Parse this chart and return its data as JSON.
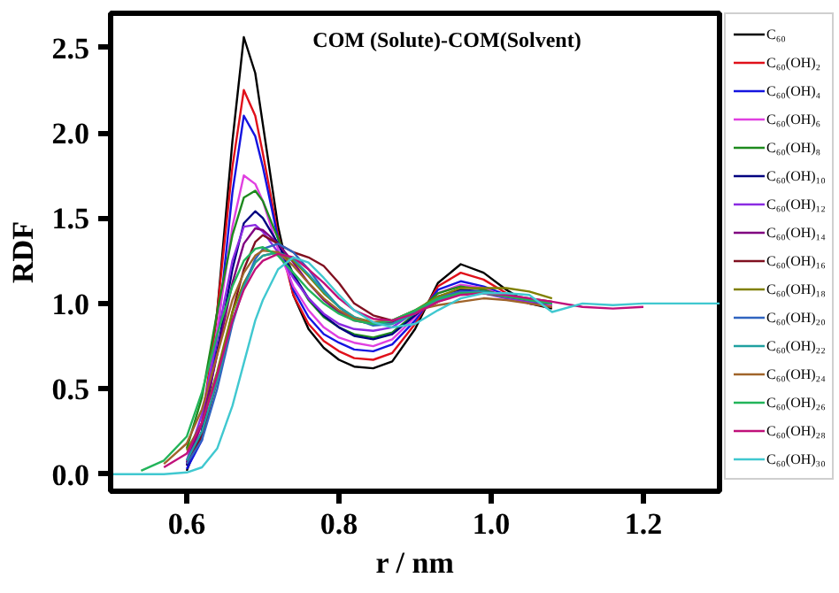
{
  "chart_data": {
    "type": "line",
    "title": "COM (Solute)-COM(Solvent)",
    "xlabel": "r / nm",
    "ylabel": "RDF",
    "xlim": [
      0.5,
      1.3
    ],
    "ylim": [
      -0.1,
      2.7
    ],
    "xticks": [
      0.6,
      0.8,
      {
        "value": 1.0,
        "label": "1.0"
      },
      1.2
    ],
    "yticks": [
      {
        "value": 0,
        "label": "0.0"
      },
      0.5,
      {
        "value": 1.0,
        "label": "1.0"
      },
      1.5,
      {
        "value": 2.0,
        "label": "2.0"
      },
      2.5
    ],
    "legend": "right",
    "x": [
      0.5,
      0.54,
      0.57,
      0.6,
      0.62,
      0.64,
      0.66,
      0.675,
      0.69,
      0.7,
      0.72,
      0.74,
      0.76,
      0.78,
      0.8,
      0.82,
      0.845,
      0.87,
      0.9,
      0.93,
      0.96,
      0.99,
      1.02,
      1.05,
      1.08,
      1.12,
      1.16,
      1.2,
      1.25,
      1.3
    ],
    "series": [
      {
        "name": "C₆₀",
        "color": "#000000",
        "values": [
          null,
          null,
          null,
          0.02,
          0.25,
          0.95,
          1.95,
          2.56,
          2.35,
          2.05,
          1.45,
          1.05,
          0.85,
          0.74,
          0.67,
          0.63,
          0.62,
          0.66,
          0.85,
          1.12,
          1.23,
          1.18,
          1.08,
          1.0,
          0.97,
          null,
          null,
          null,
          null,
          null
        ]
      },
      {
        "name": "C₆₀(OH)₂",
        "color": "#e0101a",
        "values": [
          null,
          null,
          null,
          0.05,
          0.3,
          0.95,
          1.8,
          2.25,
          2.1,
          1.88,
          1.4,
          1.05,
          0.88,
          0.78,
          0.72,
          0.68,
          0.67,
          0.71,
          0.88,
          1.1,
          1.18,
          1.14,
          1.06,
          1.0,
          0.98,
          null,
          null,
          null,
          null,
          null
        ]
      },
      {
        "name": "C₆₀(OH)₄",
        "color": "#1414e0",
        "values": [
          null,
          null,
          null,
          0.03,
          0.2,
          0.8,
          1.65,
          2.1,
          1.98,
          1.8,
          1.38,
          1.08,
          0.92,
          0.82,
          0.77,
          0.73,
          0.72,
          0.76,
          0.9,
          1.08,
          1.13,
          1.1,
          1.05,
          1.0,
          0.99,
          null,
          null,
          null,
          null,
          null
        ]
      },
      {
        "name": "C₆₀(OH)₆",
        "color": "#e040e0",
        "values": [
          null,
          null,
          null,
          0.06,
          0.3,
          0.85,
          1.45,
          1.75,
          1.7,
          1.6,
          1.32,
          1.1,
          0.96,
          0.86,
          0.8,
          0.77,
          0.75,
          0.79,
          0.92,
          1.06,
          1.11,
          1.09,
          1.04,
          1.0,
          0.99,
          null,
          null,
          null,
          null,
          null
        ]
      },
      {
        "name": "C₆₀(OH)₈",
        "color": "#1e8a1e",
        "values": [
          null,
          null,
          null,
          0.15,
          0.45,
          0.95,
          1.4,
          1.62,
          1.66,
          1.6,
          1.38,
          1.17,
          1.02,
          0.92,
          0.86,
          0.82,
          0.8,
          0.83,
          0.94,
          1.06,
          1.1,
          1.08,
          1.04,
          1.01,
          1.0,
          null,
          null,
          null,
          null,
          null
        ]
      },
      {
        "name": "C₆₀(OH)₁₀",
        "color": "#000080",
        "values": [
          null,
          null,
          null,
          0.05,
          0.25,
          0.72,
          1.2,
          1.47,
          1.54,
          1.5,
          1.35,
          1.17,
          1.03,
          0.93,
          0.86,
          0.81,
          0.79,
          0.82,
          0.93,
          1.04,
          1.08,
          1.07,
          1.04,
          1.01,
          1.0,
          null,
          null,
          null,
          null,
          null
        ]
      },
      {
        "name": "C₆₀(OH)₁₂",
        "color": "#8a2be2",
        "values": [
          null,
          null,
          null,
          0.08,
          0.35,
          0.8,
          1.25,
          1.45,
          1.46,
          1.42,
          1.3,
          1.15,
          1.03,
          0.94,
          0.88,
          0.85,
          0.84,
          0.86,
          0.95,
          1.04,
          1.07,
          1.06,
          1.03,
          1.01,
          1.0,
          null,
          null,
          null,
          null,
          null
        ]
      },
      {
        "name": "C₆₀(OH)₁₄",
        "color": "#800080",
        "values": [
          null,
          null,
          null,
          0.07,
          0.3,
          0.7,
          1.12,
          1.35,
          1.44,
          1.43,
          1.35,
          1.24,
          1.12,
          1.02,
          0.95,
          0.9,
          0.88,
          0.89,
          0.95,
          1.03,
          1.06,
          1.06,
          1.04,
          1.02,
          1.0,
          null,
          null,
          null,
          null,
          null
        ]
      },
      {
        "name": "C₆₀(OH)₁₆",
        "color": "#801020",
        "values": [
          null,
          null,
          null,
          0.06,
          0.22,
          0.55,
          0.95,
          1.2,
          1.36,
          1.4,
          1.35,
          1.3,
          1.27,
          1.22,
          1.12,
          1.0,
          0.93,
          0.9,
          0.94,
          1.01,
          1.06,
          1.07,
          1.05,
          1.03,
          1.01,
          null,
          null,
          null,
          null,
          null
        ]
      },
      {
        "name": "C₆₀(OH)₁₈",
        "color": "#808000",
        "values": [
          null,
          null,
          null,
          0.14,
          0.3,
          0.6,
          0.95,
          1.12,
          1.24,
          1.28,
          1.3,
          1.25,
          1.16,
          1.06,
          0.98,
          0.92,
          0.89,
          0.9,
          0.96,
          1.04,
          1.09,
          1.09,
          1.09,
          1.07,
          1.03,
          null,
          null,
          null,
          null,
          null
        ]
      },
      {
        "name": "C₆₀(OH)₂₀",
        "color": "#3064c0",
        "values": [
          null,
          null,
          null,
          0.06,
          0.2,
          0.5,
          0.88,
          1.1,
          1.26,
          1.32,
          1.35,
          1.3,
          1.2,
          1.08,
          0.98,
          0.91,
          0.87,
          0.88,
          0.95,
          1.03,
          1.07,
          1.07,
          1.05,
          1.02,
          1.0,
          null,
          null,
          null,
          null,
          null
        ]
      },
      {
        "name": "C₆₀(OH)₂₂",
        "color": "#20a0a0",
        "values": [
          null,
          null,
          null,
          0.08,
          0.25,
          0.55,
          0.9,
          1.1,
          1.24,
          1.28,
          1.3,
          1.26,
          1.17,
          1.07,
          0.98,
          0.92,
          0.88,
          0.88,
          0.94,
          1.02,
          1.06,
          1.07,
          1.05,
          1.02,
          1.0,
          null,
          null,
          null,
          null,
          null
        ]
      },
      {
        "name": "C₆₀(OH)₂₄",
        "color": "#a0642a",
        "values": [
          null,
          null,
          0.06,
          0.18,
          0.38,
          0.7,
          1.02,
          1.18,
          1.28,
          1.31,
          1.3,
          1.22,
          1.12,
          1.03,
          0.96,
          0.91,
          0.89,
          0.9,
          0.96,
          0.99,
          1.01,
          1.03,
          1.02,
          1.0,
          0.98,
          null,
          null,
          null,
          null,
          null
        ]
      },
      {
        "name": "C₆₀(OH)₂₆",
        "color": "#22b45a",
        "values": [
          null,
          0.02,
          0.08,
          0.22,
          0.48,
          0.82,
          1.1,
          1.25,
          1.32,
          1.33,
          1.28,
          1.18,
          1.08,
          1.0,
          0.94,
          0.9,
          0.88,
          0.9,
          0.96,
          1.03,
          1.06,
          1.06,
          1.04,
          1.02,
          1.0,
          null,
          null,
          null,
          null,
          null
        ]
      },
      {
        "name": "C₆₀(OH)₂₈",
        "color": "#c0107a",
        "values": [
          null,
          null,
          0.04,
          0.12,
          0.3,
          0.58,
          0.9,
          1.08,
          1.2,
          1.25,
          1.29,
          1.27,
          1.2,
          1.12,
          1.03,
          0.96,
          0.91,
          0.9,
          0.94,
          1.01,
          1.05,
          1.06,
          1.05,
          1.03,
          1.01,
          0.98,
          0.97,
          0.98,
          null,
          null
        ]
      },
      {
        "name": "C₆₀(OH)₃₀",
        "color": "#40c8d0",
        "values": [
          0,
          0,
          0,
          0.01,
          0.04,
          0.15,
          0.4,
          0.65,
          0.9,
          1.02,
          1.2,
          1.27,
          1.24,
          1.15,
          1.05,
          0.96,
          0.89,
          0.86,
          0.88,
          0.96,
          1.03,
          1.06,
          1.06,
          1.05,
          0.95,
          1.0,
          0.99,
          1.0,
          1.0,
          1.0
        ]
      }
    ]
  }
}
